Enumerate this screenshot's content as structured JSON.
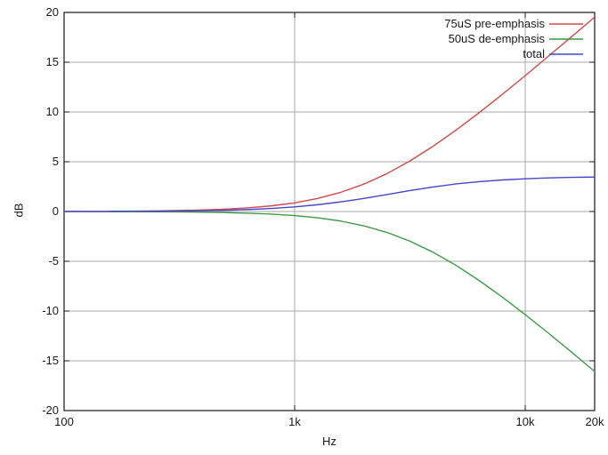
{
  "chart_data": {
    "type": "line",
    "title": "",
    "xlabel": "Hz",
    "ylabel": "dB",
    "x_scale": "log",
    "xlim": [
      100,
      20000
    ],
    "ylim": [
      -20,
      20
    ],
    "grid": true,
    "legend_position": "top-right-inside",
    "background_color": "#ffffff",
    "grid_color": "#a8a8a8",
    "border_color": "#161616",
    "text_color": "#1a1a1a",
    "x_ticks": [
      {
        "value": 100,
        "label": "100"
      },
      {
        "value": 1000,
        "label": "1k"
      },
      {
        "value": 10000,
        "label": "10k"
      },
      {
        "value": 20000,
        "label": "20k"
      }
    ],
    "y_ticks": [
      {
        "value": -20,
        "label": "-20"
      },
      {
        "value": -15,
        "label": "-15"
      },
      {
        "value": -10,
        "label": "-10"
      },
      {
        "value": -5,
        "label": "-5"
      },
      {
        "value": 0,
        "label": "0"
      },
      {
        "value": 5,
        "label": "5"
      },
      {
        "value": 10,
        "label": "10"
      },
      {
        "value": 15,
        "label": "15"
      },
      {
        "value": 20,
        "label": "20"
      }
    ],
    "x_gridlines": [
      1000,
      10000
    ],
    "y_gridlines": [
      -15,
      -10,
      -5,
      0,
      5,
      10,
      15
    ],
    "x": [
      100,
      126,
      158,
      200,
      251,
      316,
      398,
      501,
      631,
      794,
      1000,
      1259,
      1585,
      1995,
      2512,
      3162,
      3981,
      5012,
      6310,
      7943,
      10000,
      12589,
      15849,
      20000
    ],
    "series": [
      {
        "name": "75uS pre-emphasis",
        "color": "#cc4b4b",
        "values": [
          0.01,
          0.02,
          0.02,
          0.04,
          0.06,
          0.1,
          0.15,
          0.24,
          0.37,
          0.57,
          0.87,
          1.31,
          1.93,
          2.75,
          3.8,
          5.08,
          6.55,
          8.18,
          9.93,
          11.76,
          13.65,
          15.59,
          17.54,
          19.53
        ]
      },
      {
        "name": "50uS de-emphasis",
        "color": "#3f9a48",
        "values": [
          0.0,
          -0.01,
          -0.01,
          -0.02,
          -0.03,
          -0.04,
          -0.07,
          -0.11,
          -0.17,
          -0.26,
          -0.41,
          -0.63,
          -0.96,
          -1.44,
          -2.1,
          -2.98,
          -4.09,
          -5.41,
          -6.93,
          -8.59,
          -10.36,
          -12.21,
          -14.11,
          -16.07
        ]
      },
      {
        "name": "total",
        "color": "#4646c8",
        "values": [
          0.01,
          0.01,
          0.01,
          0.02,
          0.03,
          0.05,
          0.08,
          0.13,
          0.2,
          0.31,
          0.46,
          0.68,
          0.97,
          1.31,
          1.7,
          2.1,
          2.46,
          2.77,
          3.0,
          3.17,
          3.29,
          3.38,
          3.43,
          3.46
        ]
      }
    ]
  }
}
